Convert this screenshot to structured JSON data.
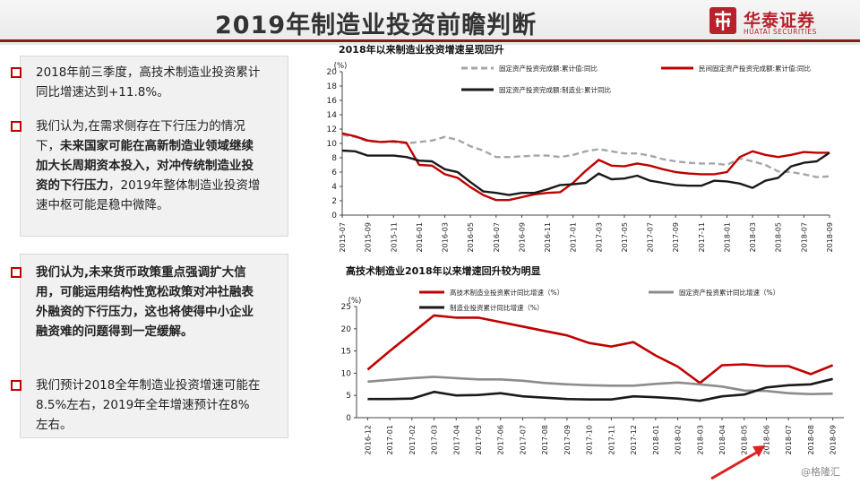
{
  "header": {
    "title": "2019年制造业投资前瞻判断"
  },
  "brand": {
    "name_cn": "华泰证券",
    "name_en": "HUATAI SECURITIES",
    "color": "#b8212c"
  },
  "left_panel_top": {
    "bullets": [
      {
        "parts": [
          {
            "text": "2018年前三季度，高技术制造业投资累计同比增速达到+11.8%。",
            "bold": false
          }
        ]
      },
      {
        "parts": [
          {
            "text": "我们认为,在需求侧存在下行压力的情况下，",
            "bold": false
          },
          {
            "text": "未来国家可能在高新制造业领域继续加大长周期资本投入，对冲传统制造业投资的下行压力",
            "bold": true
          },
          {
            "text": "，2019年整体制造业投资增速中枢可能是稳中微降。",
            "bold": false
          }
        ]
      }
    ]
  },
  "left_panel_bottom": {
    "bullets": [
      {
        "parts": [
          {
            "text": "我们认为,未来货币政策重点强调扩大信用，可能运用结构性宽松政策对冲社融表外融资的下行压力，这也将使得中小企业融资难的问题得到一定缓解。",
            "bold": true
          }
        ]
      },
      {
        "parts": [
          {
            "text": "我们预计2018全年制造业投资增速可能在8.5%左右，2019年全年增速预计在8%左右。",
            "bold": false
          }
        ]
      }
    ]
  },
  "watermark": "@格隆汇",
  "chart_data": [
    {
      "type": "line",
      "title": "2018年以来制造业投资增速呈现回升",
      "ylabel": "(%)",
      "ylim": [
        0,
        20
      ],
      "yticks": [
        0,
        2,
        4,
        6,
        8,
        10,
        12,
        14,
        16,
        18,
        20
      ],
      "x": [
        "2015-07",
        "2015-08",
        "2015-09",
        "2015-10",
        "2015-11",
        "2015-12",
        "2016-01",
        "2016-02",
        "2016-03",
        "2016-04",
        "2016-05",
        "2016-06",
        "2016-07",
        "2016-08",
        "2016-09",
        "2016-10",
        "2016-11",
        "2016-12",
        "2017-01",
        "2017-02",
        "2017-03",
        "2017-04",
        "2017-05",
        "2017-06",
        "2017-07",
        "2017-08",
        "2017-09",
        "2017-10",
        "2017-11",
        "2017-12",
        "2018-01",
        "2018-02",
        "2018-03",
        "2018-04",
        "2018-05",
        "2018-06",
        "2018-07",
        "2018-08",
        "2018-09"
      ],
      "xticks": [
        "2015-07",
        "2015-09",
        "2015-11",
        "2016-01",
        "2016-03",
        "2016-05",
        "2016-07",
        "2016-09",
        "2016-11",
        "2017-01",
        "2017-03",
        "2017-05",
        "2017-07",
        "2017-09",
        "2017-11",
        "2018-01",
        "2018-03",
        "2018-05",
        "2018-07",
        "2018-09"
      ],
      "legend": "top",
      "series": [
        {
          "name": "固定资产投资完成额:累计值:同比",
          "color": "#a6a6a6",
          "dash": true,
          "values": [
            11.2,
            10.9,
            10.3,
            10.2,
            10.2,
            10.0,
            10.2,
            10.4,
            10.9,
            10.5,
            9.6,
            9.0,
            8.1,
            8.1,
            8.2,
            8.3,
            8.3,
            8.1,
            8.4,
            8.9,
            9.2,
            8.9,
            8.6,
            8.6,
            8.3,
            7.8,
            7.5,
            7.3,
            7.2,
            7.2,
            7.0,
            7.9,
            7.5,
            7.0,
            6.1,
            6.0,
            5.7,
            5.3,
            5.4
          ]
        },
        {
          "name": "民间固定资产投资完成额:累计值:同比",
          "color": "#c00000",
          "dash": false,
          "values": [
            11.4,
            11.0,
            10.4,
            10.2,
            10.3,
            10.1,
            7.0,
            6.9,
            5.7,
            5.2,
            3.9,
            2.8,
            2.1,
            2.1,
            2.5,
            2.9,
            3.1,
            3.2,
            4.5,
            6.2,
            7.7,
            6.9,
            6.8,
            7.2,
            6.9,
            6.4,
            6.0,
            5.8,
            5.7,
            5.7,
            6.0,
            8.1,
            8.9,
            8.4,
            8.1,
            8.4,
            8.8,
            8.7,
            8.7
          ]
        },
        {
          "name": "固定资产投资完成额:制造业:累计同比",
          "color": "#1a1a1a",
          "dash": false,
          "values": [
            9.0,
            8.9,
            8.3,
            8.3,
            8.3,
            8.1,
            7.6,
            7.5,
            6.4,
            6.0,
            4.6,
            3.3,
            3.1,
            2.8,
            3.1,
            3.1,
            3.6,
            4.2,
            4.3,
            4.5,
            5.8,
            5.0,
            5.1,
            5.5,
            4.8,
            4.5,
            4.2,
            4.1,
            4.1,
            4.8,
            4.7,
            4.4,
            3.8,
            4.8,
            5.2,
            6.8,
            7.3,
            7.5,
            8.7
          ]
        }
      ]
    },
    {
      "type": "line",
      "title": "高技术制造业2018年以来增速回升较为明显",
      "ylabel": "(%)",
      "ylim": [
        0,
        25
      ],
      "yticks": [
        0,
        5,
        10,
        15,
        20,
        25
      ],
      "x": [
        "2016-12",
        "2017-01",
        "2017-02",
        "2017-03",
        "2017-04",
        "2017-05",
        "2017-06",
        "2017-07",
        "2017-08",
        "2017-09",
        "2017-10",
        "2017-11",
        "2017-12",
        "2018-01",
        "2018-02",
        "2018-03",
        "2018-04",
        "2018-05",
        "2018-06",
        "2018-07",
        "2018-08",
        "2018-09"
      ],
      "legend": "top",
      "series": [
        {
          "name": "高技术制造业投资累计同比增速（%）",
          "color": "#c00000",
          "values": [
            10.8,
            15.0,
            19.0,
            23.0,
            22.5,
            22.5,
            21.5,
            20.5,
            19.5,
            18.5,
            16.8,
            16.0,
            17.0,
            14.0,
            11.5,
            7.8,
            11.8,
            12.0,
            11.6,
            11.6,
            9.8,
            11.8
          ]
        },
        {
          "name": "固定资产投资累计同比增速（%）",
          "color": "#8c8c8c",
          "values": [
            8.1,
            8.5,
            8.9,
            9.2,
            8.9,
            8.6,
            8.6,
            8.3,
            7.8,
            7.5,
            7.3,
            7.2,
            7.2,
            7.6,
            7.9,
            7.5,
            7.0,
            6.1,
            6.0,
            5.5,
            5.3,
            5.4
          ]
        },
        {
          "name": "制造业投资累计同比增速（%）",
          "color": "#1a1a1a",
          "values": [
            4.2,
            4.2,
            4.3,
            5.8,
            5.0,
            5.1,
            5.5,
            4.8,
            4.5,
            4.2,
            4.1,
            4.1,
            4.8,
            4.6,
            4.3,
            3.8,
            4.8,
            5.2,
            6.8,
            7.3,
            7.5,
            8.7
          ]
        }
      ]
    }
  ]
}
